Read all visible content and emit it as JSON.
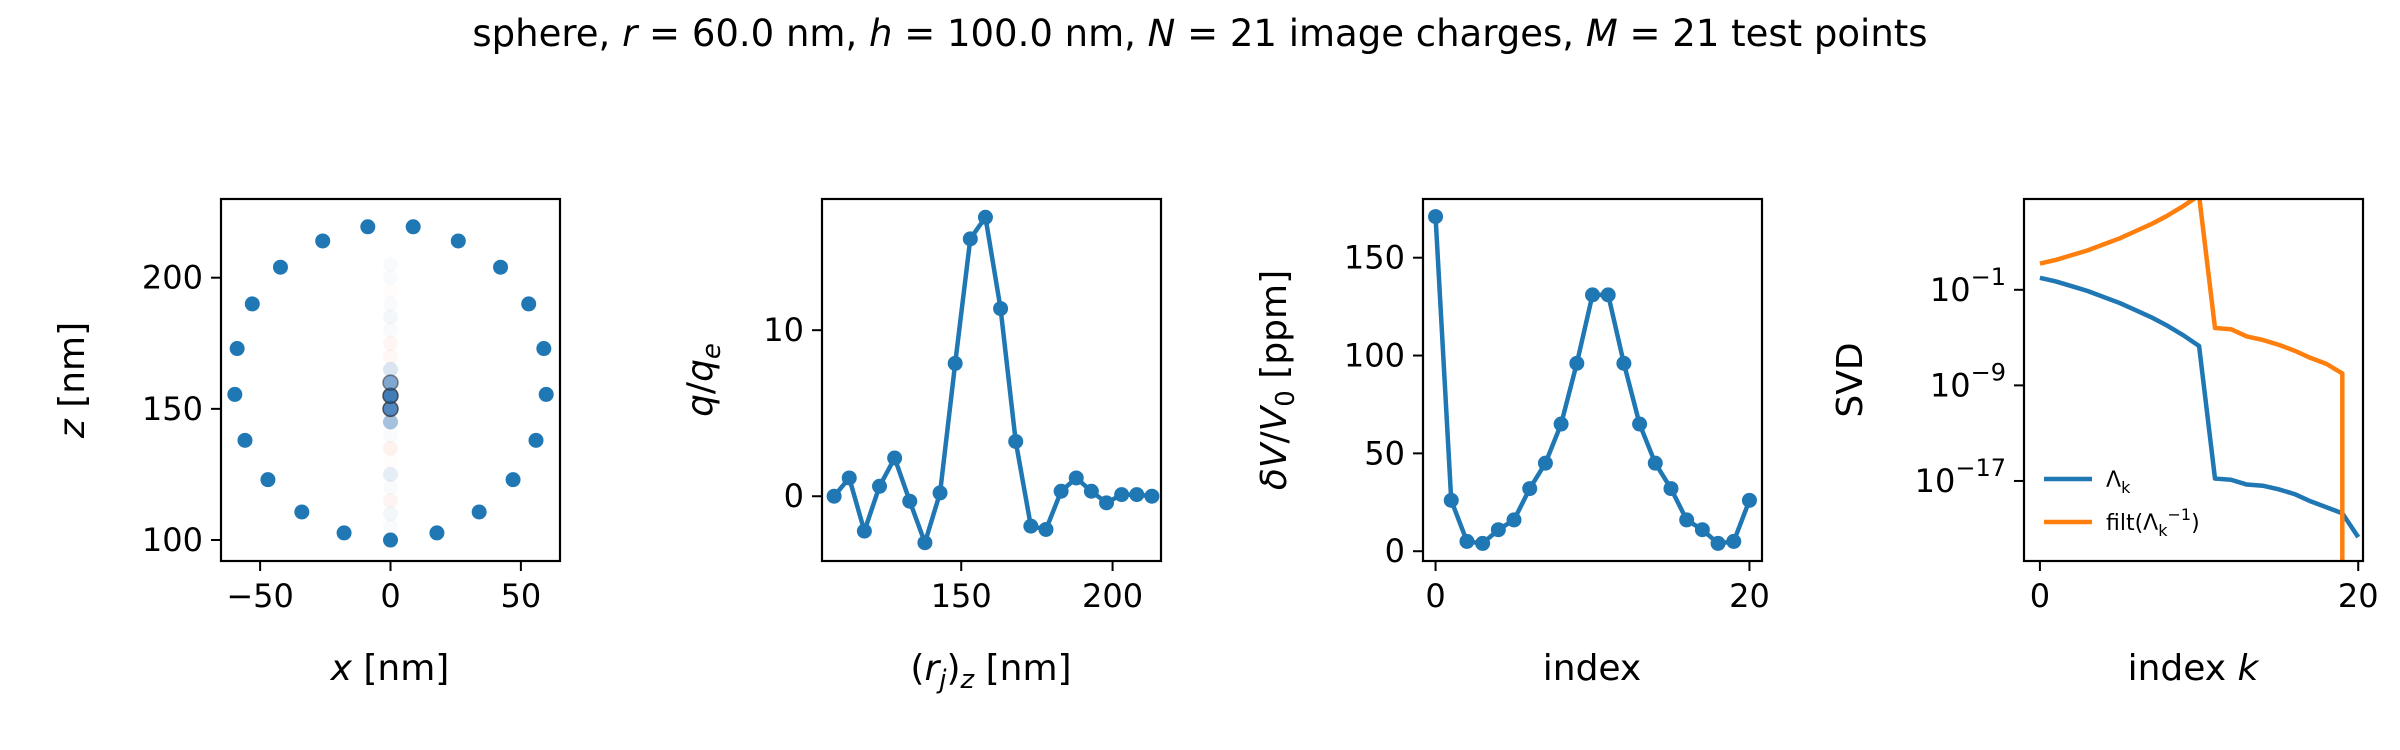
{
  "figure": {
    "title": "sphere, r = 60.0 nm, h = 100.0 nm, N = 21 image charges, M = 21 test points",
    "title_parts": [
      {
        "t": "sphere, ",
        "it": false
      },
      {
        "t": "r",
        "it": true
      },
      {
        "t": " = 60.0 nm, ",
        "it": false
      },
      {
        "t": "h",
        "it": true
      },
      {
        "t": " = 100.0 nm, ",
        "it": false
      },
      {
        "t": "N",
        "it": true
      },
      {
        "t": " = 21 image charges, ",
        "it": false
      },
      {
        "t": "M",
        "it": true
      },
      {
        "t": " = 21 test points",
        "it": false
      }
    ]
  },
  "colors": {
    "blue": "#1f77b4",
    "orange": "#ff7f0e",
    "axis": "#000000"
  },
  "chart_data": [
    {
      "type": "scatter",
      "xlabel": "x [nm]",
      "ylabel": "z [nm]",
      "xlim": [
        -65,
        65
      ],
      "ylim": [
        92,
        230
      ],
      "xticks": [
        -50,
        0,
        50
      ],
      "yticks": [
        100,
        150,
        200
      ],
      "xtick_labels": [
        "−50",
        "0",
        "50"
      ],
      "ytick_labels": [
        "100",
        "150",
        "200"
      ],
      "series": [
        {
          "color": "#1f77b4",
          "points": [
            [
              0,
              100
            ],
            [
              17.8,
              102.7
            ],
            [
              34,
              110.7
            ],
            [
              47,
              123
            ],
            [
              55.8,
              138
            ],
            [
              59.7,
              155.5
            ],
            [
              58.8,
              173
            ],
            [
              53,
              190
            ],
            [
              42.2,
              204
            ],
            [
              26,
              214
            ],
            [
              8.7,
              219.4
            ],
            [
              -8.7,
              219.4
            ],
            [
              -26,
              214
            ],
            [
              -42.2,
              204
            ],
            [
              -53,
              190
            ],
            [
              -58.8,
              173
            ],
            [
              -59.7,
              155.5
            ],
            [
              -55.8,
              138
            ],
            [
              -47,
              123
            ],
            [
              -34,
              110.7
            ],
            [
              -17.8,
              102.7
            ]
          ]
        }
      ],
      "image_charges": {
        "x": 0,
        "z": [
          105,
          110,
          115,
          120,
          125,
          130,
          135,
          140,
          145,
          150,
          155,
          160,
          165,
          170,
          175,
          180,
          185,
          190,
          195,
          200,
          205
        ],
        "q": [
          0,
          1.1,
          -2.1,
          0.6,
          2.3,
          -0.3,
          -2.8,
          0.2,
          8,
          15.5,
          16.8,
          11.3,
          3.3,
          -1.8,
          -2,
          0.3,
          1.1,
          0.3,
          -0.4,
          0.1,
          0.1
        ]
      }
    },
    {
      "type": "line",
      "xlabel": "(r_j)_z [nm]",
      "ylabel": "q/q_e",
      "xlim": [
        104,
        216
      ],
      "ylim": [
        -3.9,
        17.9
      ],
      "xticks": [
        150,
        200
      ],
      "yticks": [
        0,
        10
      ],
      "xtick_labels": [
        "150",
        "200"
      ],
      "ytick_labels": [
        "0",
        "10"
      ],
      "x": [
        108,
        113,
        118,
        123,
        128,
        133,
        138,
        143,
        148,
        153,
        158,
        163,
        168,
        173,
        178,
        183,
        188,
        193,
        198,
        203,
        208,
        213
      ],
      "series": [
        {
          "color": "#1f77b4",
          "values": [
            0,
            1.1,
            -2.1,
            0.6,
            2.3,
            -0.3,
            -2.8,
            0.2,
            8,
            15.5,
            16.8,
            11.3,
            3.3,
            -1.8,
            -2,
            0.3,
            1.1,
            0.3,
            -0.4,
            0.1,
            0.1,
            0
          ]
        }
      ]
    },
    {
      "type": "line",
      "xlabel": "index",
      "ylabel": "δV/V0 [ppm]",
      "xlim": [
        -0.8,
        20.8
      ],
      "ylim": [
        -5,
        180
      ],
      "xticks": [
        0,
        20
      ],
      "yticks": [
        0,
        50,
        100,
        150
      ],
      "xtick_labels": [
        "0",
        "20"
      ],
      "ytick_labels": [
        "0",
        "50",
        "100",
        "150"
      ],
      "x": [
        0,
        1,
        2,
        3,
        4,
        5,
        6,
        7,
        8,
        9,
        10,
        11,
        12,
        13,
        14,
        15,
        16,
        17,
        18,
        19,
        20
      ],
      "series": [
        {
          "color": "#1f77b4",
          "values": [
            171,
            26,
            5,
            4,
            11,
            16,
            32,
            45,
            65,
            96,
            131,
            131,
            96,
            65,
            45,
            32,
            16,
            11,
            4,
            5,
            26
          ]
        }
      ]
    },
    {
      "type": "line",
      "xlabel": "index k",
      "ylabel": "SVD",
      "yscale": "log",
      "xlim": [
        -1,
        20.3
      ],
      "ylim_log10": [
        -23.7,
        6.6
      ],
      "xticks": [
        0,
        20
      ],
      "xtick_labels": [
        "0",
        "20"
      ],
      "yticks_log10": [
        -1,
        -9,
        -17
      ],
      "ytick_labels": [
        "10",
        "10",
        "10"
      ],
      "ytick_exponents": [
        "−1",
        "−9",
        "−17"
      ],
      "legend_loc": "lower-left",
      "series": [
        {
          "name": "Λk",
          "color": "#1f77b4",
          "x": [
            0,
            1,
            2,
            3,
            4,
            5,
            6,
            7,
            8,
            9,
            10,
            11,
            12,
            13,
            14,
            15,
            16,
            17,
            18,
            19,
            20
          ],
          "log10_values": [
            0,
            -0.3,
            -0.7,
            -1.1,
            -1.6,
            -2.1,
            -2.7,
            -3.3,
            -4,
            -4.8,
            -5.7,
            -16.8,
            -16.9,
            -17.3,
            -17.4,
            -17.7,
            -18.1,
            -18.7,
            -19.2,
            -19.7,
            -21.7
          ]
        },
        {
          "name": "filt(Λk−1)",
          "color": "#ff7f0e",
          "x": [
            0,
            1,
            2,
            3,
            4,
            5,
            6,
            7,
            8,
            9,
            10,
            11,
            12,
            13,
            14,
            15,
            16,
            17,
            18,
            19,
            19
          ],
          "log10_values": [
            1.2,
            1.5,
            1.9,
            2.3,
            2.8,
            3.3,
            3.9,
            4.5,
            5.2,
            6,
            6.9,
            -4.2,
            -4.3,
            -4.9,
            -5.2,
            -5.6,
            -6.1,
            -6.7,
            -7.2,
            -8,
            -24
          ]
        }
      ]
    }
  ]
}
